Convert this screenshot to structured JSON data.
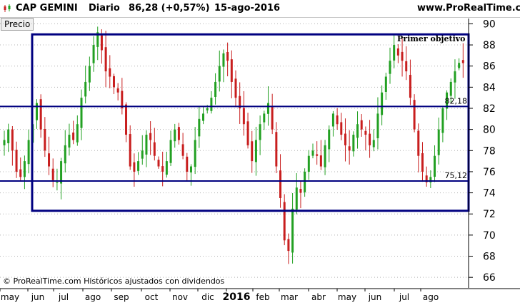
{
  "header": {
    "symbol": "CAP GEMINI",
    "period": "Diario",
    "quote": "86,28 (+0,57%)",
    "date": "15-ago-2016",
    "site": "www.ProRealTime.com"
  },
  "panel": {
    "label": "Precio"
  },
  "footer": {
    "copyright": "© ProRealTime.com  Históricos ajustados con dividendos"
  },
  "colors": {
    "up": "#22a022",
    "down": "#c81e1e",
    "levels": "#000080",
    "grid": "#b4b4b4"
  },
  "chart_data": {
    "type": "candlestick",
    "title": "CAP GEMINI",
    "ylabel": "Precio",
    "ylim": [
      65,
      90.5
    ],
    "yticks": [
      66,
      68,
      70,
      72,
      74,
      76,
      78,
      80,
      82,
      84,
      86,
      88,
      90
    ],
    "x_labels": [
      "may",
      "jun",
      "jul",
      "ago",
      "sep",
      "oct",
      "nov",
      "dic",
      "2016",
      "feb",
      "mar",
      "abr",
      "may",
      "jun",
      "jul",
      "ago"
    ],
    "x_label_bold_index": 8,
    "horizontal_levels": [
      {
        "value": 82.18,
        "label": "82,18"
      },
      {
        "value": 75.12,
        "label": "75,12"
      }
    ],
    "range_box": {
      "top": 89.0,
      "bottom": 72.3
    },
    "annotations": [
      {
        "text": "Primer objetivo",
        "value": 88.6
      }
    ],
    "price_path": [
      [
        0,
        79
      ],
      [
        1,
        80
      ],
      [
        2,
        78
      ],
      [
        3,
        76
      ],
      [
        4,
        75.5
      ],
      [
        5,
        77
      ],
      [
        6,
        79
      ],
      [
        7,
        80.5
      ],
      [
        8,
        82.5
      ],
      [
        9,
        80
      ],
      [
        10,
        78
      ],
      [
        11,
        76.5
      ],
      [
        12,
        75.2
      ],
      [
        13,
        75
      ],
      [
        14,
        77
      ],
      [
        15,
        78.5
      ],
      [
        16,
        79.5
      ],
      [
        17,
        79
      ],
      [
        18,
        80.5
      ],
      [
        19,
        83
      ],
      [
        20,
        84.5
      ],
      [
        21,
        86
      ],
      [
        22,
        88
      ],
      [
        23,
        89.2
      ],
      [
        24,
        87.5
      ],
      [
        25,
        85.5
      ],
      [
        26,
        85
      ],
      [
        27,
        84
      ],
      [
        28,
        83.5
      ],
      [
        29,
        82
      ],
      [
        30,
        79.5
      ],
      [
        31,
        76.5
      ],
      [
        32,
        76
      ],
      [
        33,
        77
      ],
      [
        34,
        78
      ],
      [
        35,
        79.5
      ],
      [
        36,
        79
      ],
      [
        37,
        77.5
      ],
      [
        38,
        76.5
      ],
      [
        39,
        76
      ],
      [
        40,
        77
      ],
      [
        41,
        79
      ],
      [
        42,
        80
      ],
      [
        43,
        79
      ],
      [
        44,
        77.5
      ],
      [
        45,
        76
      ],
      [
        46,
        76.5
      ],
      [
        47,
        79
      ],
      [
        48,
        81
      ],
      [
        49,
        81.5
      ],
      [
        50,
        82
      ],
      [
        51,
        83
      ],
      [
        52,
        84.5
      ],
      [
        53,
        86
      ],
      [
        54,
        87.2
      ],
      [
        55,
        86.5
      ],
      [
        56,
        84.5
      ],
      [
        57,
        83
      ],
      [
        58,
        82
      ],
      [
        59,
        80.5
      ],
      [
        60,
        78.5
      ],
      [
        61,
        77
      ],
      [
        62,
        79
      ],
      [
        63,
        80.5
      ],
      [
        64,
        81.5
      ],
      [
        65,
        82.5
      ],
      [
        66,
        80
      ],
      [
        67,
        76.5
      ],
      [
        68,
        73.5
      ],
      [
        69,
        69.5
      ],
      [
        70,
        68.5
      ],
      [
        71,
        72.5
      ],
      [
        72,
        74.5
      ],
      [
        73,
        74
      ],
      [
        74,
        76
      ],
      [
        75,
        77.5
      ],
      [
        76,
        78
      ],
      [
        77,
        77.5
      ],
      [
        78,
        76.5
      ],
      [
        79,
        78.5
      ],
      [
        80,
        80
      ],
      [
        81,
        81.5
      ],
      [
        82,
        80.5
      ],
      [
        83,
        79.5
      ],
      [
        84,
        78.5
      ],
      [
        85,
        78
      ],
      [
        86,
        79.5
      ],
      [
        87,
        80.5
      ],
      [
        88,
        80
      ],
      [
        89,
        79.5
      ],
      [
        90,
        78.5
      ],
      [
        91,
        79
      ],
      [
        92,
        81.5
      ],
      [
        93,
        83.5
      ],
      [
        94,
        85
      ],
      [
        95,
        86.5
      ],
      [
        96,
        88
      ],
      [
        97,
        87
      ],
      [
        98,
        86.5
      ],
      [
        99,
        85.5
      ],
      [
        100,
        83
      ],
      [
        101,
        80
      ],
      [
        102,
        77.5
      ],
      [
        103,
        76
      ],
      [
        104,
        75
      ],
      [
        105,
        75.5
      ],
      [
        106,
        77.5
      ],
      [
        107,
        80
      ],
      [
        108,
        82
      ],
      [
        109,
        83.5
      ],
      [
        110,
        84.5
      ],
      [
        111,
        85.5
      ],
      [
        112,
        86.3
      ],
      [
        113,
        86.28
      ]
    ]
  }
}
